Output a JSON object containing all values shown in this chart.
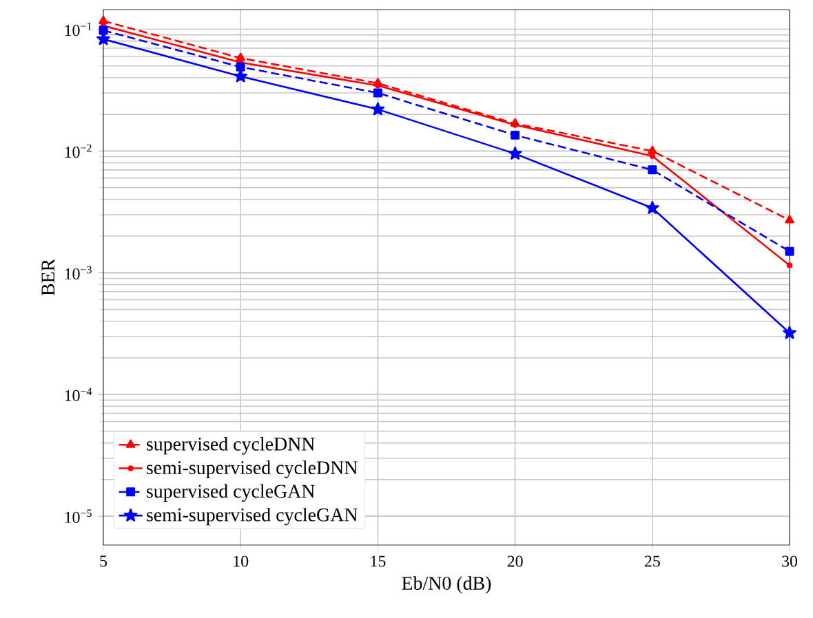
{
  "chart_data": {
    "type": "line",
    "xlabel": "Eb/N0 (dB)",
    "ylabel": "BER",
    "x": [
      5,
      10,
      15,
      20,
      25,
      30
    ],
    "series": [
      {
        "name": "supervised cycleDNN",
        "color": "#ff0000",
        "line_style": "dashed",
        "marker": "triangle",
        "values": [
          0.117,
          0.058,
          0.036,
          0.0168,
          0.01,
          0.0027
        ]
      },
      {
        "name": "semi-supervised cycleDNN",
        "color": "#ff0000",
        "line_style": "solid",
        "marker": "circle",
        "values": [
          0.107,
          0.0534,
          0.0345,
          0.0164,
          0.0091,
          0.00115
        ]
      },
      {
        "name": "supervised cycleGAN",
        "color": "#0000ff",
        "line_style": "dashed",
        "marker": "square",
        "values": [
          0.098,
          0.049,
          0.03,
          0.0135,
          0.007,
          0.0015
        ]
      },
      {
        "name": "semi-supervised cycleGAN",
        "color": "#0000ff",
        "line_style": "solid",
        "marker": "star",
        "values": [
          0.083,
          0.041,
          0.022,
          0.0095,
          0.0034,
          0.00032
        ]
      }
    ],
    "log": "y",
    "xlim": [
      5,
      30
    ],
    "ylim": [
      5.8e-06,
      0.145
    ],
    "xticks": [
      5,
      10,
      15,
      20,
      25,
      30
    ],
    "yticks": [
      {
        "value": 1e-05,
        "label": "10$^{−5}$"
      },
      {
        "value": 0.0001,
        "label": "10$^{−4}$"
      },
      {
        "value": 0.001,
        "label": "10$^{−3}$"
      },
      {
        "value": 0.01,
        "label": "10$^{−2}$"
      },
      {
        "value": 0.1,
        "label": "10$^{−1}$"
      }
    ],
    "grid": true,
    "legend": "bottom left"
  }
}
